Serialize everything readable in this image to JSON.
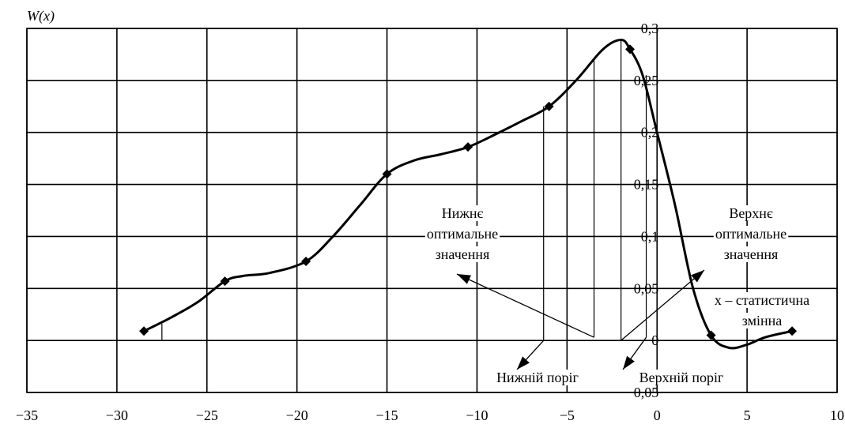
{
  "chart_data": {
    "type": "line",
    "ylabel": "W(x)",
    "xlim": [
      -35,
      10
    ],
    "ylim": [
      -0.05,
      0.3
    ],
    "x_ticks": [
      "−35",
      "−30",
      "−25",
      "−20",
      "−15",
      "−10",
      "−5",
      "0",
      "5",
      "10"
    ],
    "x_tick_values": [
      -35,
      -30,
      -25,
      -20,
      -15,
      -10,
      -5,
      0,
      5,
      10
    ],
    "y_ticks": [
      "−0,05",
      "0",
      "0,05",
      "0,1",
      "0,15",
      "0,2",
      "0,25",
      "0,3"
    ],
    "y_tick_values": [
      -0.05,
      0,
      0.05,
      0.1,
      0.15,
      0.2,
      0.25,
      0.3
    ],
    "grid": true,
    "series": [
      {
        "markers": [
          {
            "x": -28.5,
            "y": 0.009
          },
          {
            "x": -24.0,
            "y": 0.057
          },
          {
            "x": -19.5,
            "y": 0.076
          },
          {
            "x": -15.0,
            "y": 0.16
          },
          {
            "x": -10.5,
            "y": 0.186
          },
          {
            "x": -6.0,
            "y": 0.225
          },
          {
            "x": -1.5,
            "y": 0.28
          },
          {
            "x": 3.0,
            "y": 0.005
          },
          {
            "x": 7.5,
            "y": 0.009
          }
        ],
        "curve": [
          [
            -28.5,
            0.009
          ],
          [
            -27,
            0.022
          ],
          [
            -25.5,
            0.037
          ],
          [
            -24,
            0.057
          ],
          [
            -23,
            0.062
          ],
          [
            -21.5,
            0.065
          ],
          [
            -19.5,
            0.076
          ],
          [
            -18,
            0.1
          ],
          [
            -16.5,
            0.13
          ],
          [
            -15,
            0.16
          ],
          [
            -13.5,
            0.173
          ],
          [
            -12,
            0.179
          ],
          [
            -10.5,
            0.186
          ],
          [
            -9,
            0.198
          ],
          [
            -7.5,
            0.211
          ],
          [
            -6,
            0.225
          ],
          [
            -4.5,
            0.25
          ],
          [
            -3,
            0.28
          ],
          [
            -2,
            0.289
          ],
          [
            -1.5,
            0.28
          ],
          [
            -0.8,
            0.255
          ],
          [
            0,
            0.2
          ],
          [
            1,
            0.13
          ],
          [
            2,
            0.05
          ],
          [
            3,
            0.005
          ],
          [
            4,
            -0.007
          ],
          [
            5,
            -0.004
          ],
          [
            6,
            0.003
          ],
          [
            7.5,
            0.009
          ]
        ]
      }
    ],
    "annotations": [
      {
        "id": "lower_opt",
        "lines": [
          "Нижнє",
          "оптимальне",
          "значення"
        ]
      },
      {
        "id": "upper_opt",
        "lines": [
          "Верхнє",
          "оптимальне",
          "значення"
        ]
      },
      {
        "id": "variable",
        "lines": [
          "x – статистична",
          "змінна"
        ]
      },
      {
        "id": "lower_thr",
        "lines": [
          "Нижній поріг"
        ]
      },
      {
        "id": "upper_thr",
        "lines": [
          "Верхній поріг"
        ]
      }
    ],
    "vertical_lines": {
      "lower_start": -27.5,
      "lower_threshold": -6.3,
      "lower_optimal": -3.5,
      "upper_optimal": -2.0,
      "upper_threshold": -0.6
    }
  }
}
